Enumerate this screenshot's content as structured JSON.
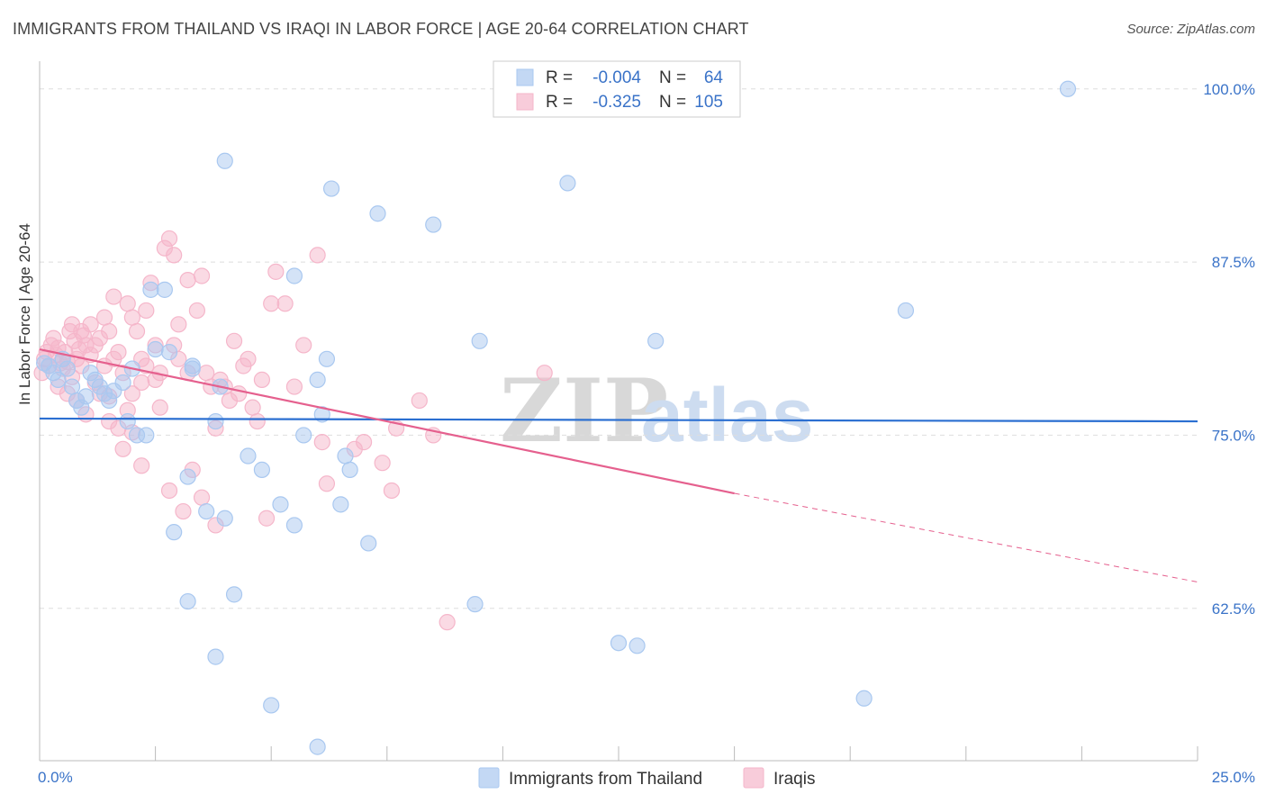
{
  "header": {
    "title": "IMMIGRANTS FROM THAILAND VS IRAQI IN LABOR FORCE | AGE 20-64 CORRELATION CHART",
    "source": "Source: ZipAtlas.com"
  },
  "watermark": {
    "zip": "ZIP",
    "atlas": "atlas"
  },
  "colors": {
    "blue": "#a9c8f0",
    "blue_line": "#2b6fd1",
    "pink": "#f5b6ca",
    "pink_line": "#e5608e",
    "axis_text": "#3a73c8",
    "grid": "#dddddd"
  },
  "chart_data": {
    "type": "scatter",
    "title": "IMMIGRANTS FROM THAILAND VS IRAQI IN LABOR FORCE | AGE 20-64 CORRELATION CHART",
    "xlabel": "",
    "ylabel": "In Labor Force | Age 20-64",
    "xlim": [
      0,
      25
    ],
    "ylim": [
      51.5,
      102
    ],
    "x_tick_labels": [
      "0.0%",
      "25.0%"
    ],
    "y_ticks": [
      62.5,
      75.0,
      87.5,
      100.0
    ],
    "y_tick_labels": [
      "62.5%",
      "75.0%",
      "87.5%",
      "100.0%"
    ],
    "legend": {
      "position": "top-center",
      "rows": [
        {
          "r_label": "R =",
          "r_value": "-0.004",
          "n_label": "N =",
          "n_value": "64"
        },
        {
          "r_label": "R =",
          "r_value": "-0.325",
          "n_label": "N =",
          "n_value": "105"
        }
      ]
    },
    "series": [
      {
        "name": "Immigrants from Thailand",
        "color": "blue",
        "trend": {
          "x": [
            0,
            25
          ],
          "y": [
            76.2,
            76.0
          ],
          "dashed_from": null
        },
        "points": [
          [
            0.1,
            80.2
          ],
          [
            0.2,
            80.0
          ],
          [
            0.3,
            79.5
          ],
          [
            0.4,
            79.0
          ],
          [
            0.5,
            80.5
          ],
          [
            0.6,
            79.8
          ],
          [
            0.7,
            78.5
          ],
          [
            0.8,
            77.5
          ],
          [
            0.9,
            77.0
          ],
          [
            1.1,
            79.5
          ],
          [
            1.2,
            79.0
          ],
          [
            1.3,
            78.5
          ],
          [
            1.4,
            78.0
          ],
          [
            1.5,
            77.5
          ],
          [
            1.6,
            78.2
          ],
          [
            1.8,
            78.8
          ],
          [
            1.9,
            76.0
          ],
          [
            2.1,
            75.0
          ],
          [
            2.4,
            85.5
          ],
          [
            2.7,
            85.5
          ],
          [
            2.5,
            81.2
          ],
          [
            2.8,
            81.0
          ],
          [
            3.3,
            80.0
          ],
          [
            3.8,
            76.0
          ],
          [
            3.9,
            78.5
          ],
          [
            2.3,
            75.0
          ],
          [
            4.0,
            94.8
          ],
          [
            4.5,
            73.5
          ],
          [
            4.8,
            72.5
          ],
          [
            5.2,
            70.0
          ],
          [
            5.5,
            68.5
          ],
          [
            5.7,
            75.0
          ],
          [
            5.5,
            86.5
          ],
          [
            6.1,
            76.5
          ],
          [
            6.0,
            79.0
          ],
          [
            6.2,
            80.5
          ],
          [
            6.3,
            92.8
          ],
          [
            6.5,
            70.0
          ],
          [
            6.6,
            73.5
          ],
          [
            6.7,
            72.5
          ],
          [
            7.1,
            67.2
          ],
          [
            7.3,
            91.0
          ],
          [
            8.5,
            90.2
          ],
          [
            9.5,
            81.8
          ],
          [
            3.2,
            72.0
          ],
          [
            3.6,
            69.5
          ],
          [
            4.0,
            69.0
          ],
          [
            2.9,
            68.0
          ],
          [
            3.2,
            63.0
          ],
          [
            4.2,
            63.5
          ],
          [
            3.8,
            59.0
          ],
          [
            5.0,
            55.5
          ],
          [
            6.0,
            52.5
          ],
          [
            9.4,
            62.8
          ],
          [
            12.5,
            60.0
          ],
          [
            12.9,
            59.8
          ],
          [
            11.4,
            93.2
          ],
          [
            13.3,
            81.8
          ],
          [
            18.7,
            84.0
          ],
          [
            17.8,
            56.0
          ],
          [
            22.2,
            100.0
          ],
          [
            1.0,
            77.8
          ],
          [
            3.3,
            79.8
          ],
          [
            2.0,
            79.8
          ]
        ]
      },
      {
        "name": "Iraqis",
        "color": "pink",
        "trend": {
          "x": [
            0,
            15,
            25
          ],
          "y": [
            81.2,
            70.8,
            64.4
          ],
          "dashed_from": 15
        },
        "points": [
          [
            0.05,
            79.5
          ],
          [
            0.1,
            80.5
          ],
          [
            0.15,
            81.0
          ],
          [
            0.2,
            80.0
          ],
          [
            0.25,
            81.5
          ],
          [
            0.3,
            82.0
          ],
          [
            0.35,
            80.8
          ],
          [
            0.4,
            81.3
          ],
          [
            0.45,
            80.2
          ],
          [
            0.5,
            79.8
          ],
          [
            0.55,
            81.0
          ],
          [
            0.6,
            80.3
          ],
          [
            0.65,
            82.5
          ],
          [
            0.7,
            83.0
          ],
          [
            0.75,
            81.8
          ],
          [
            0.8,
            80.5
          ],
          [
            0.85,
            81.2
          ],
          [
            0.9,
            80.0
          ],
          [
            0.95,
            82.2
          ],
          [
            1.0,
            81.5
          ],
          [
            1.1,
            80.8
          ],
          [
            1.2,
            81.5
          ],
          [
            1.3,
            82.0
          ],
          [
            1.4,
            83.5
          ],
          [
            1.5,
            82.5
          ],
          [
            1.6,
            80.5
          ],
          [
            1.7,
            81.0
          ],
          [
            1.8,
            79.5
          ],
          [
            1.9,
            84.5
          ],
          [
            2.0,
            83.5
          ],
          [
            2.1,
            82.5
          ],
          [
            2.2,
            80.5
          ],
          [
            2.3,
            84.0
          ],
          [
            2.4,
            86.0
          ],
          [
            2.5,
            79.0
          ],
          [
            2.6,
            77.0
          ],
          [
            2.7,
            88.5
          ],
          [
            2.8,
            89.2
          ],
          [
            2.9,
            81.5
          ],
          [
            3.0,
            80.5
          ],
          [
            3.2,
            79.5
          ],
          [
            3.4,
            84.0
          ],
          [
            3.5,
            86.5
          ],
          [
            3.6,
            79.5
          ],
          [
            3.7,
            78.5
          ],
          [
            3.8,
            75.5
          ],
          [
            3.9,
            79.0
          ],
          [
            4.0,
            78.5
          ],
          [
            4.2,
            81.8
          ],
          [
            4.3,
            78.0
          ],
          [
            4.4,
            80.0
          ],
          [
            4.5,
            80.5
          ],
          [
            4.6,
            77.0
          ],
          [
            4.7,
            76.0
          ],
          [
            4.8,
            79.0
          ],
          [
            5.0,
            84.5
          ],
          [
            5.1,
            86.8
          ],
          [
            5.3,
            84.5
          ],
          [
            5.5,
            78.5
          ],
          [
            5.7,
            81.5
          ],
          [
            6.0,
            88.0
          ],
          [
            6.1,
            74.5
          ],
          [
            6.2,
            71.5
          ],
          [
            7.0,
            74.5
          ],
          [
            7.4,
            73.0
          ],
          [
            7.6,
            71.0
          ],
          [
            7.7,
            75.5
          ],
          [
            8.2,
            77.5
          ],
          [
            8.5,
            75.0
          ],
          [
            8.8,
            61.5
          ],
          [
            10.9,
            79.5
          ],
          [
            1.5,
            76.0
          ],
          [
            1.7,
            75.5
          ],
          [
            1.8,
            74.0
          ],
          [
            2.0,
            75.2
          ],
          [
            2.2,
            72.8
          ],
          [
            2.8,
            71.0
          ],
          [
            3.1,
            69.5
          ],
          [
            3.3,
            72.5
          ],
          [
            3.5,
            70.5
          ],
          [
            3.8,
            68.5
          ],
          [
            2.6,
            79.5
          ],
          [
            1.3,
            78.0
          ],
          [
            1.0,
            76.5
          ],
          [
            0.8,
            77.5
          ],
          [
            2.3,
            80.0
          ],
          [
            2.5,
            81.5
          ],
          [
            3.0,
            83.0
          ],
          [
            1.6,
            85.0
          ],
          [
            2.9,
            88.0
          ],
          [
            3.2,
            86.2
          ],
          [
            1.2,
            78.8
          ],
          [
            0.7,
            79.2
          ],
          [
            1.5,
            77.8
          ],
          [
            2.0,
            78.0
          ],
          [
            2.2,
            78.8
          ],
          [
            0.4,
            78.5
          ],
          [
            0.6,
            78.0
          ],
          [
            1.9,
            76.8
          ],
          [
            4.9,
            69.0
          ],
          [
            6.8,
            74.0
          ],
          [
            4.1,
            77.5
          ],
          [
            1.4,
            80.0
          ],
          [
            0.9,
            82.5
          ],
          [
            1.1,
            83.0
          ]
        ]
      }
    ]
  }
}
